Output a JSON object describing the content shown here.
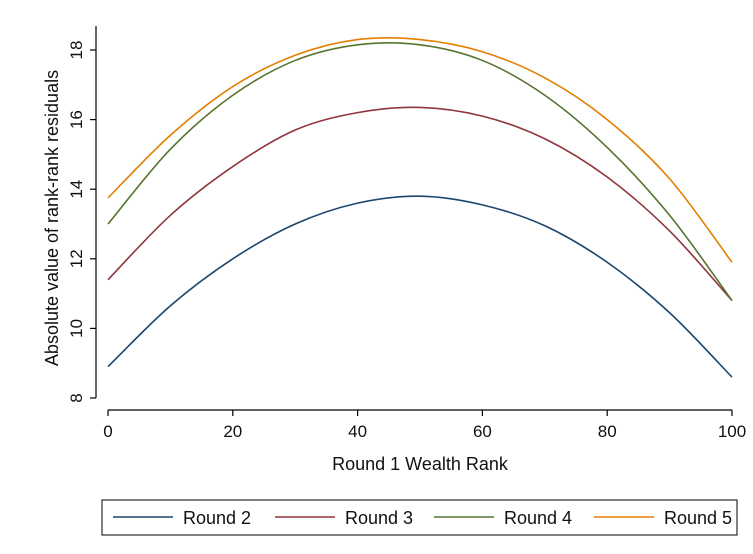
{
  "chart_data": {
    "type": "line",
    "title": "",
    "xlabel": "Round 1 Wealth Rank",
    "ylabel": "Absolute value of rank-rank residuals",
    "xlim": [
      0,
      100
    ],
    "ylim": [
      8,
      18.6
    ],
    "xticks": [
      0,
      20,
      40,
      60,
      80,
      100
    ],
    "yticks": [
      8,
      10,
      12,
      14,
      16,
      18
    ],
    "grid": false,
    "legend_position": "bottom",
    "x": [
      0,
      10,
      20,
      30,
      40,
      50,
      60,
      70,
      80,
      90,
      100
    ],
    "series": [
      {
        "name": "Round 2",
        "color": "#1a476f",
        "values": [
          8.9,
          10.65,
          12.0,
          13.0,
          13.6,
          13.8,
          13.55,
          12.95,
          11.9,
          10.45,
          8.6
        ]
      },
      {
        "name": "Round 3",
        "color": "#90353b",
        "values": [
          11.4,
          13.25,
          14.65,
          15.7,
          16.2,
          16.35,
          16.1,
          15.45,
          14.35,
          12.8,
          10.8
        ]
      },
      {
        "name": "Round 4",
        "color": "#55752f",
        "values": [
          13.0,
          15.15,
          16.7,
          17.7,
          18.15,
          18.15,
          17.7,
          16.7,
          15.2,
          13.25,
          10.8
        ]
      },
      {
        "name": "Round 5",
        "color": "#e37e00",
        "values": [
          13.75,
          15.55,
          16.95,
          17.85,
          18.3,
          18.3,
          17.95,
          17.2,
          16.0,
          14.3,
          11.9
        ]
      }
    ]
  }
}
